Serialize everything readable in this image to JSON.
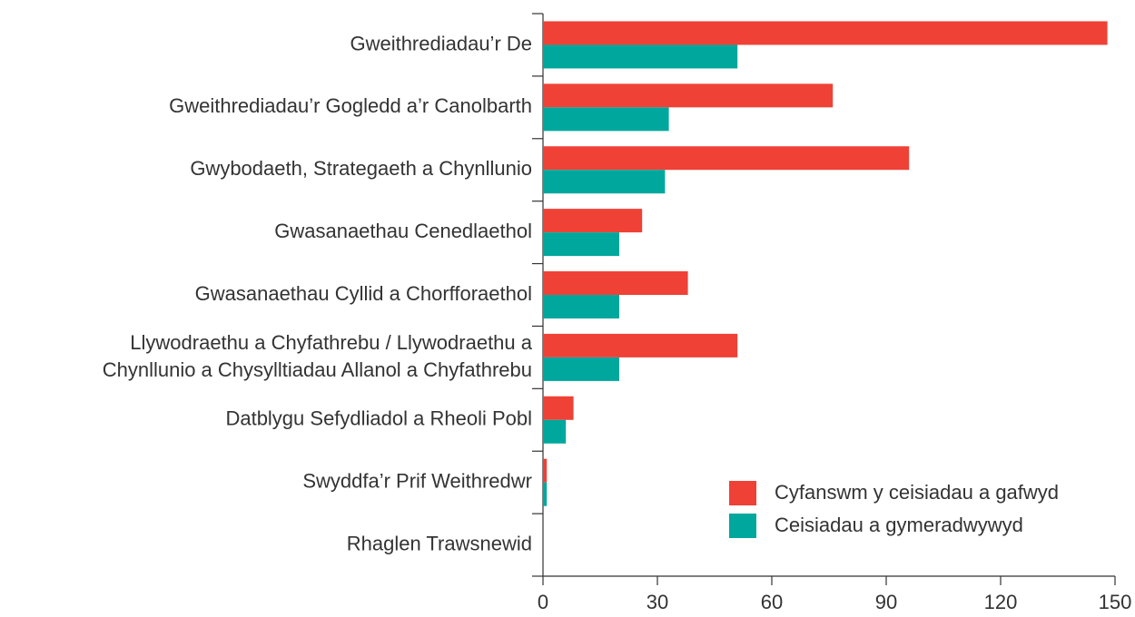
{
  "chart_data": {
    "type": "hbar",
    "categories": [
      "Gweithrediadau’r De",
      "Gweithrediadau’r Gogledd a’r Canolbarth",
      "Gwybodaeth, Strategaeth a Chynllunio",
      "Gwasanaethau Cenedlaethol",
      "Gwasanaethau Cyllid a Chorfforaethol",
      "Llywodraethu a Chyfathrebu / Llywodraethu a\nChynllunio a Chysylltiadau Allanol a Chyfathrebu",
      "Datblygu Sefydliadol a Rheoli Pobl",
      "Swyddfa’r Prif Weithredwr",
      "Rhaglen Trawsnewid"
    ],
    "series": [
      {
        "name": "Cyfanswm y ceisiadau a gafwyd",
        "color": "#ef4136",
        "values": [
          148,
          76,
          96,
          26,
          38,
          51,
          8,
          1,
          0
        ]
      },
      {
        "name": "Ceisiadau a gymeradwywyd",
        "color": "#00a79d",
        "values": [
          51,
          33,
          32,
          20,
          20,
          20,
          6,
          1,
          0
        ]
      }
    ],
    "xlim": [
      0,
      150
    ],
    "xticks": [
      0,
      30,
      60,
      90,
      120,
      150
    ],
    "legend": "lower right"
  }
}
